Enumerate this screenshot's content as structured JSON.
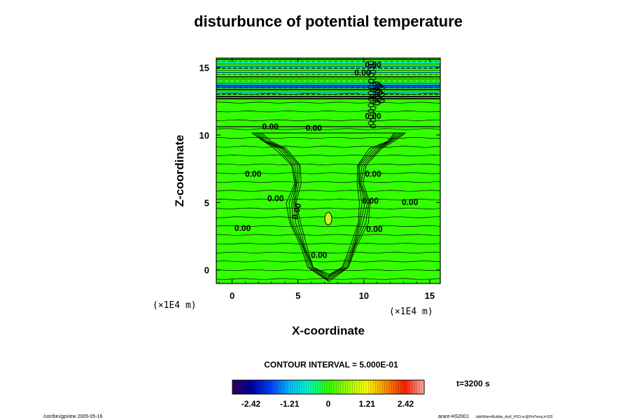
{
  "chart_data": {
    "type": "heatmap",
    "title": "disturbunce of potential temperature",
    "xlabel": "X-coordinate",
    "ylabel": "Z-coordinate",
    "x_unit_left": "(×1E4 m)",
    "x_unit_right": "(×1E4 m)",
    "xlim": [
      -1.2,
      15.8
    ],
    "ylim": [
      -1,
      15.7
    ],
    "x_ticks": [
      0,
      5,
      10,
      15
    ],
    "y_ticks": [
      0,
      5,
      10,
      15
    ],
    "x_tick_labels": [
      "0",
      "5",
      "10",
      "15"
    ],
    "y_tick_labels": [
      "0",
      "5",
      "10",
      "15"
    ],
    "background_level_color": "#33ff00",
    "anomaly": {
      "x": 7.3,
      "z": 3.8,
      "value_level": 1.0,
      "color": "#ccf520"
    },
    "contour_labels": [
      {
        "text": "0.00",
        "x": 2.9,
        "z": 10.4,
        "rot": 0
      },
      {
        "text": "0.00",
        "x": 6.2,
        "z": 10.3,
        "rot": 0
      },
      {
        "text": "0.00",
        "x": 1.6,
        "z": 6.9,
        "rot": 0
      },
      {
        "text": "0.00",
        "x": 10.7,
        "z": 6.9,
        "rot": 0
      },
      {
        "text": "0.00",
        "x": 3.3,
        "z": 5.1,
        "rot": 0
      },
      {
        "text": "0.00",
        "x": 10.5,
        "z": 4.9,
        "rot": 0
      },
      {
        "text": "0.00",
        "x": 13.5,
        "z": 4.8,
        "rot": 0
      },
      {
        "text": "0.00",
        "x": 5.1,
        "z": 4.3,
        "rot": -75
      },
      {
        "text": "0.00",
        "x": 0.8,
        "z": 2.9,
        "rot": 0
      },
      {
        "text": "0.00",
        "x": 10.8,
        "z": 2.8,
        "rot": 0
      },
      {
        "text": "0.00",
        "x": 6.6,
        "z": 0.9,
        "rot": 0
      },
      {
        "text": "0.00",
        "x": 9.9,
        "z": 14.4,
        "rot": 0
      },
      {
        "text": "0.00",
        "x": 10.7,
        "z": 15.0,
        "rot": 0
      },
      {
        "text": "0.00",
        "x": 10.7,
        "z": 11.2,
        "rot": 0
      }
    ],
    "contour_interval_text": "CONTOUR INTERVAL = 5.000E-01",
    "colorbar": {
      "tick_labels": [
        "-2.42",
        "-1.21",
        "0",
        "1.21",
        "2.42"
      ],
      "tick_values": [
        -2.42,
        -1.21,
        0,
        1.21,
        2.42
      ],
      "range": [
        -3.0,
        3.0
      ],
      "gradient": [
        "#300060",
        "#0000a0",
        "#0040ff",
        "#00c0ff",
        "#00ffc0",
        "#30ff00",
        "#a0ff00",
        "#ffff00",
        "#ff9000",
        "#ff2000",
        "#ffb0b0"
      ]
    },
    "time_label": "t=3200 s",
    "footer_left": "/usr/bin/gpview 2005-05-16",
    "footer_right_main": "arare-HS2001",
    "footer_right_small": "ddd/WarmBubble_dry6_H2O.nc@PotTemp,t=320"
  }
}
